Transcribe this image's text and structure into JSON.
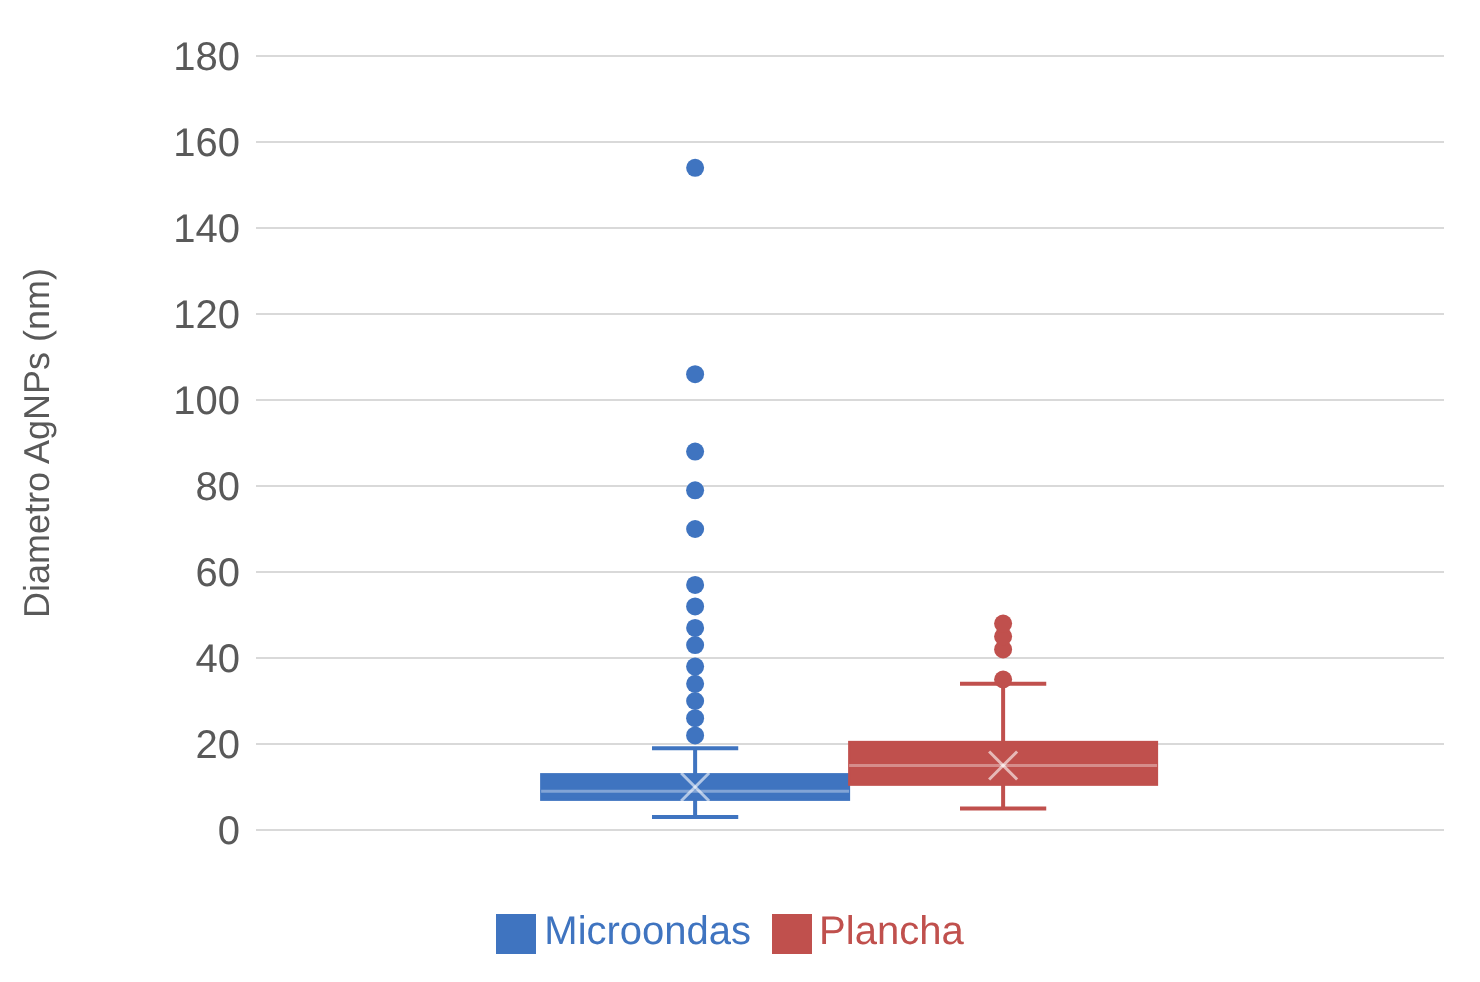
{
  "chart_data": {
    "type": "box",
    "ylabel": "Diametro AgNPs (nm)",
    "categories": [
      null
    ],
    "series": [
      {
        "name": "Microondas",
        "color": "#3f74c0",
        "boxes": [
          {
            "low": 3,
            "q1": 7,
            "median": 9,
            "q3": 13,
            "high": 19,
            "mean": 10,
            "outliers": [
              22,
              26,
              30,
              34,
              38,
              43,
              47,
              52,
              57,
              70,
              79,
              88,
              106,
              154
            ]
          }
        ]
      },
      {
        "name": "Plancha",
        "color": "#c0504d",
        "boxes": [
          {
            "low": 5,
            "q1": 10.5,
            "median": 15,
            "q3": 20.5,
            "high": 34,
            "mean": 15,
            "outliers": [
              35,
              42,
              45,
              48
            ]
          }
        ]
      }
    ],
    "ylim": [
      0,
      180
    ],
    "yticks": [
      0,
      20,
      40,
      60,
      80,
      100,
      120,
      140,
      160,
      180
    ],
    "grid": "y",
    "legend": "bottom",
    "marker": "circle"
  }
}
